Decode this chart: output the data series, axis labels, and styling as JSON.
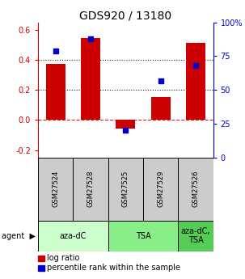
{
  "title": "GDS920 / 13180",
  "samples": [
    "GSM27524",
    "GSM27528",
    "GSM27525",
    "GSM27529",
    "GSM27526"
  ],
  "log_ratios": [
    0.375,
    0.545,
    -0.055,
    0.155,
    0.515
  ],
  "percentile_ranks": [
    79,
    88,
    20,
    57,
    68
  ],
  "agent_groups": [
    {
      "label": "aza-dC",
      "start": 0,
      "end": 2,
      "color": "#ccffcc"
    },
    {
      "label": "TSA",
      "start": 2,
      "end": 4,
      "color": "#88ee88"
    },
    {
      "label": "aza-dC,\nTSA",
      "start": 4,
      "end": 5,
      "color": "#55cc55"
    }
  ],
  "bar_color": "#cc0000",
  "dot_color": "#0000cc",
  "ylim_left": [
    -0.25,
    0.65
  ],
  "ylim_right": [
    0,
    100
  ],
  "yticks_left": [
    -0.2,
    0.0,
    0.2,
    0.4,
    0.6
  ],
  "yticks_right": [
    0,
    25,
    50,
    75,
    100
  ],
  "right_tick_labels": [
    "0",
    "25",
    "50",
    "75",
    "100%"
  ],
  "hlines": [
    0.0,
    0.2,
    0.4
  ],
  "hline_styles": [
    "--",
    ":",
    ":"
  ],
  "hline_colors": [
    "#cc2222",
    "#222222",
    "#222222"
  ],
  "sample_box_color": "#cccccc",
  "bar_width": 0.55,
  "agent_label": "agent",
  "legend_log_ratio": "log ratio",
  "legend_percentile": "percentile rank within the sample",
  "title_fontsize": 10,
  "tick_fontsize": 7,
  "legend_fontsize": 7,
  "sample_fontsize": 6,
  "agent_fontsize": 7
}
